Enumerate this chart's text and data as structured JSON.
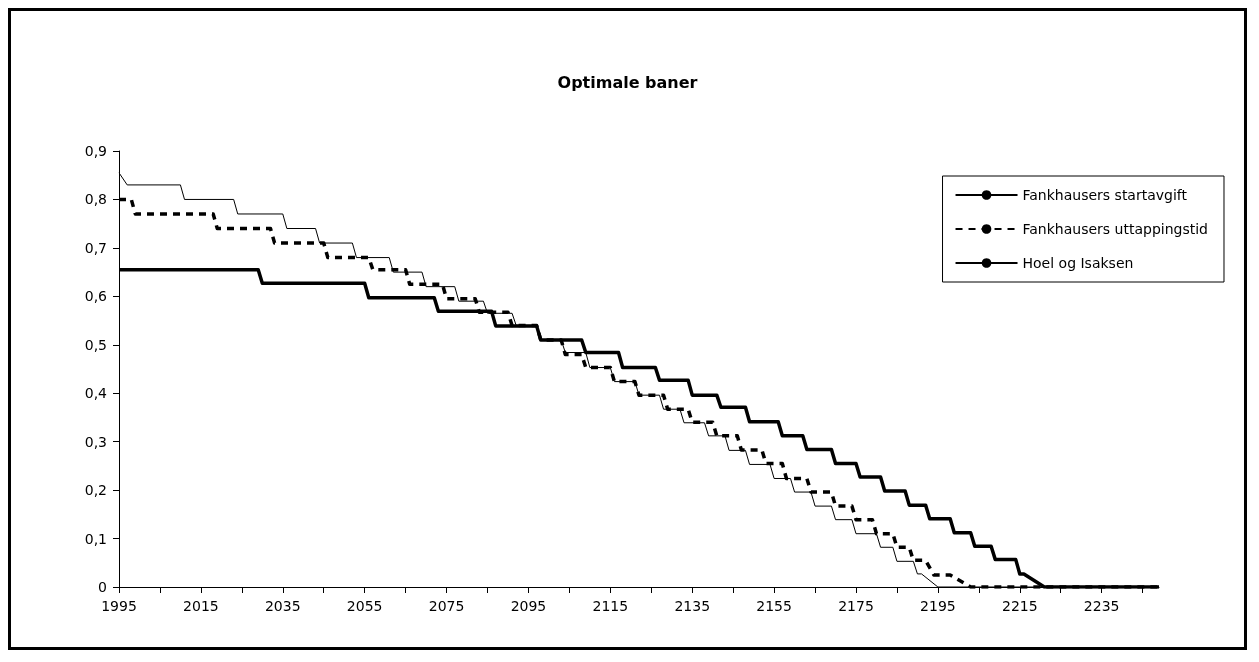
{
  "chart_data": {
    "type": "line",
    "title": "Optimale baner",
    "xlim": [
      1995,
      2249
    ],
    "xticks": [
      1995,
      {
        "value": 2005,
        "label": null
      },
      2015,
      {
        "value": 2025,
        "label": null
      },
      2035,
      {
        "value": 2045,
        "label": null
      },
      2055,
      {
        "value": 2065,
        "label": null
      },
      2075,
      {
        "value": 2085,
        "label": null
      },
      2095,
      {
        "value": 2105,
        "label": null
      },
      2115,
      {
        "value": 2125,
        "label": null
      },
      2135,
      {
        "value": 2145,
        "label": null
      },
      2155,
      {
        "value": 2165,
        "label": null
      },
      2175,
      {
        "value": 2185,
        "label": null
      },
      2195,
      {
        "value": 2205,
        "label": null
      },
      2215,
      {
        "value": 2225,
        "label": null
      },
      2235,
      {
        "value": 2245,
        "label": null
      }
    ],
    "ylim": [
      0,
      0.9
    ],
    "yticks": [
      0,
      {
        "value": 0.1,
        "label": "0,1"
      },
      {
        "value": 0.2,
        "label": "0,2"
      },
      {
        "value": 0.3,
        "label": "0,3"
      },
      {
        "value": 0.4,
        "label": "0,4"
      },
      {
        "value": 0.5,
        "label": "0,5"
      },
      {
        "value": 0.6,
        "label": "0,6"
      },
      {
        "value": 0.7,
        "label": "0,7"
      },
      {
        "value": 0.8,
        "label": "0,8"
      },
      {
        "value": 0.9,
        "label": "0,9"
      }
    ],
    "grid": false,
    "legend": "top right",
    "marker": "none",
    "series": [
      {
        "name": "Fankhausers startavgift",
        "color": "#000000",
        "line_style": "solid",
        "x": [
          1995,
          1997,
          2010,
          2011,
          2023,
          2024,
          2035,
          2036,
          2043,
          2044,
          2052,
          2053,
          2061,
          2062,
          2069,
          2070,
          2077,
          2078,
          2084,
          2085,
          2091,
          2092,
          2097,
          2098,
          2103,
          2104,
          2109,
          2110,
          2115,
          2116,
          2121,
          2122,
          2127,
          2128,
          2132,
          2133,
          2138,
          2139,
          2143,
          2144,
          2148,
          2149,
          2154,
          2155,
          2159,
          2160,
          2164,
          2165,
          2169,
          2170,
          2174,
          2175,
          2180,
          2181,
          2184,
          2185,
          2189,
          2190,
          2191,
          2195,
          2249
        ],
        "values": [
          0.855,
          0.83,
          0.83,
          0.8,
          0.8,
          0.77,
          0.77,
          0.74,
          0.74,
          0.71,
          0.71,
          0.68,
          0.68,
          0.65,
          0.65,
          0.62,
          0.62,
          0.59,
          0.59,
          0.565,
          0.565,
          0.54,
          0.54,
          0.51,
          0.51,
          0.484,
          0.484,
          0.453,
          0.453,
          0.424,
          0.424,
          0.396,
          0.396,
          0.367,
          0.367,
          0.339,
          0.339,
          0.312,
          0.312,
          0.282,
          0.282,
          0.253,
          0.253,
          0.224,
          0.224,
          0.196,
          0.196,
          0.167,
          0.167,
          0.139,
          0.139,
          0.11,
          0.11,
          0.082,
          0.082,
          0.053,
          0.053,
          0.027,
          0.027,
          0,
          0
        ]
      },
      {
        "name": "Fankhausers uttappingstid",
        "color": "#000000",
        "line_style": "dashed",
        "x": [
          1995,
          1998,
          1999,
          2018,
          2019,
          2032,
          2033,
          2045,
          2046,
          2056,
          2057,
          2065,
          2066,
          2074,
          2075,
          2082,
          2083,
          2090,
          2091,
          2097,
          2098,
          2103,
          2104,
          2108,
          2109,
          2115,
          2116,
          2121,
          2122,
          2128,
          2129,
          2134,
          2135,
          2140,
          2141,
          2146,
          2147,
          2152,
          2153,
          2157,
          2158,
          2163,
          2164,
          2169,
          2170,
          2174,
          2175,
          2179,
          2180,
          2184,
          2185,
          2188,
          2189,
          2192,
          2194,
          2198,
          2203,
          2249
        ],
        "values": [
          0.8,
          0.8,
          0.77,
          0.77,
          0.74,
          0.74,
          0.71,
          0.71,
          0.68,
          0.68,
          0.655,
          0.655,
          0.625,
          0.625,
          0.595,
          0.595,
          0.567,
          0.567,
          0.54,
          0.54,
          0.51,
          0.51,
          0.48,
          0.48,
          0.453,
          0.453,
          0.424,
          0.424,
          0.396,
          0.396,
          0.367,
          0.367,
          0.34,
          0.34,
          0.312,
          0.312,
          0.283,
          0.283,
          0.255,
          0.255,
          0.224,
          0.224,
          0.196,
          0.196,
          0.167,
          0.167,
          0.139,
          0.139,
          0.11,
          0.11,
          0.082,
          0.082,
          0.055,
          0.055,
          0.025,
          0.025,
          0,
          0
        ]
      },
      {
        "name": "Hoel og Isaksen",
        "color": "#000000",
        "line_style": "solid",
        "x": [
          1995,
          2029,
          2030,
          2055,
          2056,
          2072,
          2073,
          2086,
          2087,
          2097,
          2098,
          2108,
          2109,
          2117,
          2118,
          2126,
          2127,
          2134,
          2135,
          2141,
          2142,
          2148,
          2149,
          2156,
          2157,
          2162,
          2163,
          2169,
          2170,
          2175,
          2176,
          2181,
          2182,
          2187,
          2188,
          2192,
          2193,
          2198,
          2199,
          2203,
          2204,
          2208,
          2209,
          2214,
          2215,
          2216,
          2221,
          2249
        ],
        "values": [
          0.655,
          0.655,
          0.627,
          0.627,
          0.597,
          0.597,
          0.569,
          0.569,
          0.539,
          0.539,
          0.51,
          0.51,
          0.484,
          0.484,
          0.453,
          0.453,
          0.427,
          0.427,
          0.396,
          0.396,
          0.371,
          0.371,
          0.341,
          0.341,
          0.312,
          0.312,
          0.284,
          0.284,
          0.255,
          0.255,
          0.227,
          0.227,
          0.198,
          0.198,
          0.169,
          0.169,
          0.141,
          0.141,
          0.112,
          0.112,
          0.084,
          0.084,
          0.057,
          0.057,
          0.027,
          0.027,
          0,
          0
        ]
      }
    ]
  }
}
